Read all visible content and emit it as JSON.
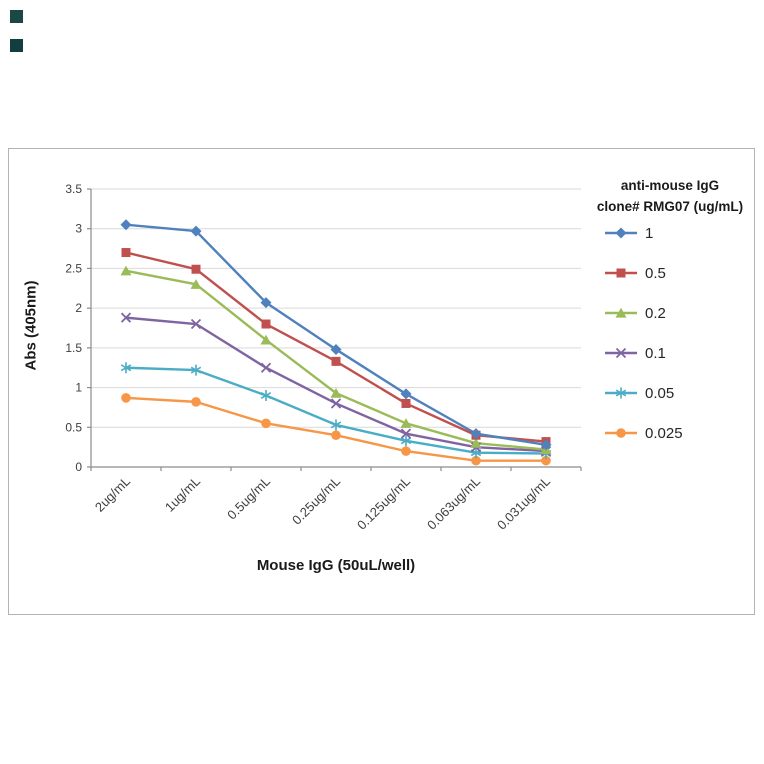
{
  "page": {
    "background": "#ffffff",
    "frame_border_color": "#b3b3b3"
  },
  "corner_marks": [
    {
      "name": "corner-mark-1",
      "color": "#1c4747"
    },
    {
      "name": "corner-mark-2",
      "color": "#143d3f"
    }
  ],
  "chart_data": {
    "type": "line",
    "title": "",
    "xlabel": "Mouse IgG (50uL/well)",
    "ylabel": "Abs (405nm)",
    "legend_title_line1": "anti-mouse IgG",
    "legend_title_line2": "clone# RMG07 (ug/mL)",
    "legend_position": "right",
    "grid": true,
    "ylim": [
      0,
      3.5
    ],
    "yticks": [
      0,
      0.5,
      1,
      1.5,
      2,
      2.5,
      3,
      3.5
    ],
    "ytick_labels": [
      "0",
      "0.5",
      "1",
      "1.5",
      "2",
      "2.5",
      "3",
      "3.5"
    ],
    "categories": [
      "2ug/mL",
      "1ug/mL",
      "0.5ug/mL",
      "0.25ug/mL",
      "0.125ug/mL",
      "0.063ug/mL",
      "0.031ug/mL"
    ],
    "series": [
      {
        "name": "1",
        "marker": "diamond",
        "color": "#4F81BD",
        "values": [
          3.05,
          2.97,
          2.07,
          1.48,
          0.92,
          0.42,
          0.28
        ]
      },
      {
        "name": "0.5",
        "marker": "square",
        "color": "#C0504D",
        "values": [
          2.7,
          2.49,
          1.8,
          1.33,
          0.8,
          0.4,
          0.32
        ]
      },
      {
        "name": "0.2",
        "marker": "triangle",
        "color": "#9BBB59",
        "values": [
          2.47,
          2.3,
          1.6,
          0.93,
          0.55,
          0.3,
          0.22
        ]
      },
      {
        "name": "0.1",
        "marker": "x",
        "color": "#8064A2",
        "values": [
          1.88,
          1.8,
          1.25,
          0.8,
          0.42,
          0.25,
          0.2
        ]
      },
      {
        "name": "0.05",
        "marker": "asterisk",
        "color": "#4BACC6",
        "values": [
          1.25,
          1.22,
          0.9,
          0.53,
          0.33,
          0.18,
          0.17
        ]
      },
      {
        "name": "0.025",
        "marker": "circle",
        "color": "#F79646",
        "values": [
          0.87,
          0.82,
          0.55,
          0.4,
          0.2,
          0.08,
          0.08
        ]
      }
    ],
    "axis_color": "#8c8c8c",
    "gridline_color": "#d9d9d9",
    "tick_label_color": "#3f3f3f"
  }
}
